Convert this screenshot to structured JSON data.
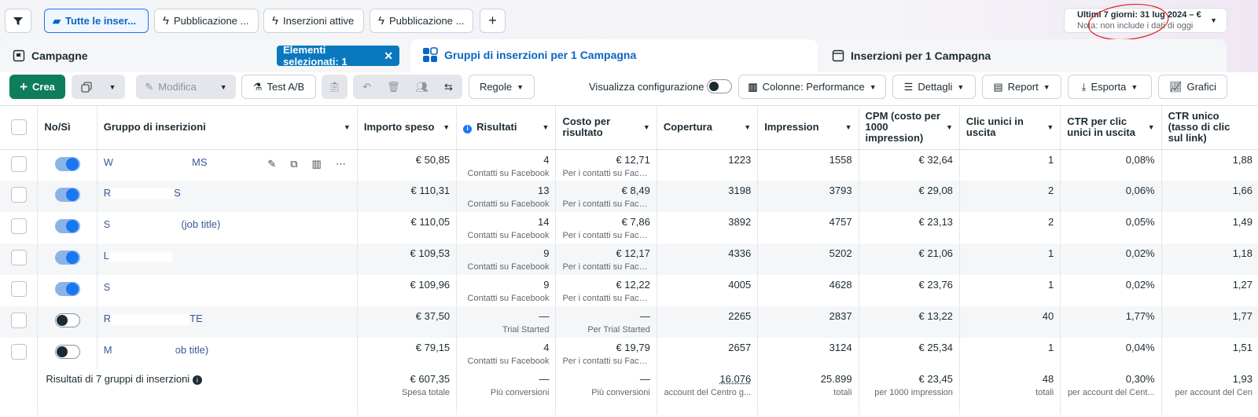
{
  "filter_tabs": [
    {
      "label": "Tutte le inser...",
      "icon": "folder-icon"
    },
    {
      "label": "Pubblicazione ...",
      "icon": "bolt-icon"
    },
    {
      "label": "Inserzioni attive",
      "icon": "bolt-icon"
    },
    {
      "label": "Pubblicazione ...",
      "icon": "bolt-icon"
    }
  ],
  "add_tab_label": "+",
  "date_range": {
    "label": "Ultimi 7 giorni: 31 lug 2024 – €",
    "note": "Nota: non include i dati di oggi"
  },
  "panels": {
    "campaigns": "Campagne",
    "selected": "Elementi selezionati: 1",
    "adsets": "Gruppi di inserzioni per 1 Campagna",
    "ads": "Inserzioni per 1 Campagna"
  },
  "toolbar": {
    "create": "Crea",
    "edit": "Modifica",
    "ab_test": "Test A/B",
    "rules": "Regole",
    "view_config": "Visualizza configurazione",
    "columns": "Colonne: Performance",
    "breakdown": "Dettagli",
    "report": "Report",
    "export": "Esporta",
    "charts": "Grafici"
  },
  "columns": [
    "No/Sì",
    "Gruppo di inserizioni",
    "Importo speso",
    "Risultati",
    "Costo per risultato",
    "Copertura",
    "Impression",
    "CPM (costo per 1000 impression)",
    "Clic unici in uscita",
    "CTR per clic unici in uscita",
    "CTR unico (tasso di clic sul link)"
  ],
  "rows": [
    {
      "on": true,
      "name_a": "W",
      "name_b": "MS",
      "spend": "€ 50,85",
      "results": "4",
      "results_sub": "Contatti su Facebook",
      "cpr": "€ 12,71",
      "cpr_sub": "Per i contatti su Face...",
      "reach": "1223",
      "impr": "1558",
      "cpm": "€ 32,64",
      "clicks": "1",
      "ctr_out": "0,08%",
      "ctr_u": "1,88"
    },
    {
      "on": true,
      "name_a": "R",
      "name_b": "S",
      "spend": "€ 110,31",
      "results": "13",
      "results_sub": "Contatti su Facebook",
      "cpr": "€ 8,49",
      "cpr_sub": "Per i contatti su Face...",
      "reach": "3198",
      "impr": "3793",
      "cpm": "€ 29,08",
      "clicks": "2",
      "ctr_out": "0,06%",
      "ctr_u": "1,66"
    },
    {
      "on": true,
      "name_a": "S",
      "name_b": "(job title)",
      "spend": "€ 110,05",
      "results": "14",
      "results_sub": "Contatti su Facebook",
      "cpr": "€ 7,86",
      "cpr_sub": "Per i contatti su Face...",
      "reach": "3892",
      "impr": "4757",
      "cpm": "€ 23,13",
      "clicks": "2",
      "ctr_out": "0,05%",
      "ctr_u": "1,49"
    },
    {
      "on": true,
      "name_a": "L",
      "name_b": "",
      "spend": "€ 109,53",
      "results": "9",
      "results_sub": "Contatti su Facebook",
      "cpr": "€ 12,17",
      "cpr_sub": "Per i contatti su Face...",
      "reach": "4336",
      "impr": "5202",
      "cpm": "€ 21,06",
      "clicks": "1",
      "ctr_out": "0,02%",
      "ctr_u": "1,18"
    },
    {
      "on": true,
      "name_a": "S",
      "name_b": "",
      "spend": "€ 109,96",
      "results": "9",
      "results_sub": "Contatti su Facebook",
      "cpr": "€ 12,22",
      "cpr_sub": "Per i contatti su Face...",
      "reach": "4005",
      "impr": "4628",
      "cpm": "€ 23,76",
      "clicks": "1",
      "ctr_out": "0,02%",
      "ctr_u": "1,27"
    },
    {
      "on": false,
      "name_a": "R",
      "name_b": "TE",
      "spend": "€ 37,50",
      "results": "—",
      "results_sub": "Trial Started",
      "cpr": "—",
      "cpr_sub": "Per Trial Started",
      "reach": "2265",
      "impr": "2837",
      "cpm": "€ 13,22",
      "clicks": "40",
      "ctr_out": "1,77%",
      "ctr_u": "1,77"
    },
    {
      "on": false,
      "name_a": "M",
      "name_b": "ob title)",
      "spend": "€ 79,15",
      "results": "4",
      "results_sub": "Contatti su Facebook",
      "cpr": "€ 19,79",
      "cpr_sub": "Per i contatti su Face...",
      "reach": "2657",
      "impr": "3124",
      "cpm": "€ 25,34",
      "clicks": "1",
      "ctr_out": "0,04%",
      "ctr_u": "1,51"
    }
  ],
  "totals": {
    "label": "Risultati di 7 gruppi di inserzioni",
    "spend": "€ 607,35",
    "spend_sub": "Spesa totale",
    "results": "—",
    "results_sub": "Più conversioni",
    "cpr": "—",
    "cpr_sub": "Più conversioni",
    "reach": "16.076",
    "reach_sub": "account del Centro g...",
    "impr": "25.899",
    "impr_sub": "totali",
    "cpm": "€ 23,45",
    "cpm_sub": "per 1000 impression",
    "clicks": "48",
    "clicks_sub": "totali",
    "ctr_out": "0,30%",
    "ctr_out_sub": "per account del Cent...",
    "ctr_u": "1,93",
    "ctr_u_sub": "per account del Cen"
  }
}
